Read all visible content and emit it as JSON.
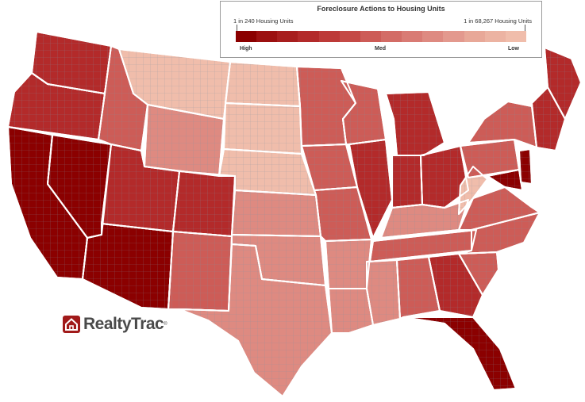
{
  "legend": {
    "title": "Foreclosure Actions to Housing Units",
    "left_label": "1 in 240 Housing Units",
    "right_label": "1 in 68,267 Housing Units",
    "scale_high": "High",
    "scale_med": "Med",
    "scale_low": "Low",
    "ramp_colors": [
      "#8b0000",
      "#9c1010",
      "#a81e1e",
      "#b32a2a",
      "#bd3a38",
      "#c54a46",
      "#cd5c57",
      "#d36c66",
      "#d97b74",
      "#de8a81",
      "#e3998e",
      "#e8a898",
      "#ecb3a2",
      "#f0bdab"
    ]
  },
  "logo": {
    "name": "RealtyTrac",
    "mark": "®",
    "brand_color": "#a11a1a"
  },
  "map": {
    "subject": "Continental United States, county-level foreclosure rate",
    "state_border_color": "#ffffff",
    "county_border_color": "#7f8fa0",
    "colors": {
      "high": "#8b0000",
      "mid_high": "#b32a2a",
      "mid": "#cd5c57",
      "mid_low": "#de8a81",
      "low": "#f0bdab"
    },
    "states": [
      {
        "name": "California",
        "level": "high"
      },
      {
        "name": "Nevada",
        "level": "high"
      },
      {
        "name": "Arizona",
        "level": "high"
      },
      {
        "name": "Oregon",
        "level": "mid_high"
      },
      {
        "name": "Washington",
        "level": "mid_high"
      },
      {
        "name": "Idaho",
        "level": "mid"
      },
      {
        "name": "Utah",
        "level": "mid_high"
      },
      {
        "name": "Montana",
        "level": "low"
      },
      {
        "name": "Wyoming",
        "level": "mid_low"
      },
      {
        "name": "Colorado",
        "level": "mid_high"
      },
      {
        "name": "New Mexico",
        "level": "mid"
      },
      {
        "name": "North Dakota",
        "level": "low"
      },
      {
        "name": "South Dakota",
        "level": "low"
      },
      {
        "name": "Nebraska",
        "level": "low"
      },
      {
        "name": "Kansas",
        "level": "mid_low"
      },
      {
        "name": "Oklahoma",
        "level": "mid_low"
      },
      {
        "name": "Texas",
        "level": "mid_low"
      },
      {
        "name": "Minnesota",
        "level": "mid"
      },
      {
        "name": "Iowa",
        "level": "mid"
      },
      {
        "name": "Missouri",
        "level": "mid"
      },
      {
        "name": "Arkansas",
        "level": "mid_low"
      },
      {
        "name": "Louisiana",
        "level": "mid_low"
      },
      {
        "name": "Wisconsin",
        "level": "mid"
      },
      {
        "name": "Illinois",
        "level": "mid_high"
      },
      {
        "name": "Michigan",
        "level": "mid_high"
      },
      {
        "name": "Indiana",
        "level": "mid_high"
      },
      {
        "name": "Ohio",
        "level": "mid_high"
      },
      {
        "name": "Kentucky",
        "level": "mid_low"
      },
      {
        "name": "Tennessee",
        "level": "mid"
      },
      {
        "name": "Mississippi",
        "level": "mid_low"
      },
      {
        "name": "Alabama",
        "level": "mid"
      },
      {
        "name": "Georgia",
        "level": "mid_high"
      },
      {
        "name": "Florida",
        "level": "high"
      },
      {
        "name": "South Carolina",
        "level": "mid"
      },
      {
        "name": "North Carolina",
        "level": "mid"
      },
      {
        "name": "Virginia",
        "level": "mid"
      },
      {
        "name": "West Virginia",
        "level": "low"
      },
      {
        "name": "Pennsylvania",
        "level": "mid"
      },
      {
        "name": "New York",
        "level": "mid"
      },
      {
        "name": "New Jersey",
        "level": "high"
      },
      {
        "name": "Maryland",
        "level": "high"
      },
      {
        "name": "New England",
        "level": "mid_high"
      },
      {
        "name": "Maine",
        "level": "mid_high"
      }
    ]
  }
}
